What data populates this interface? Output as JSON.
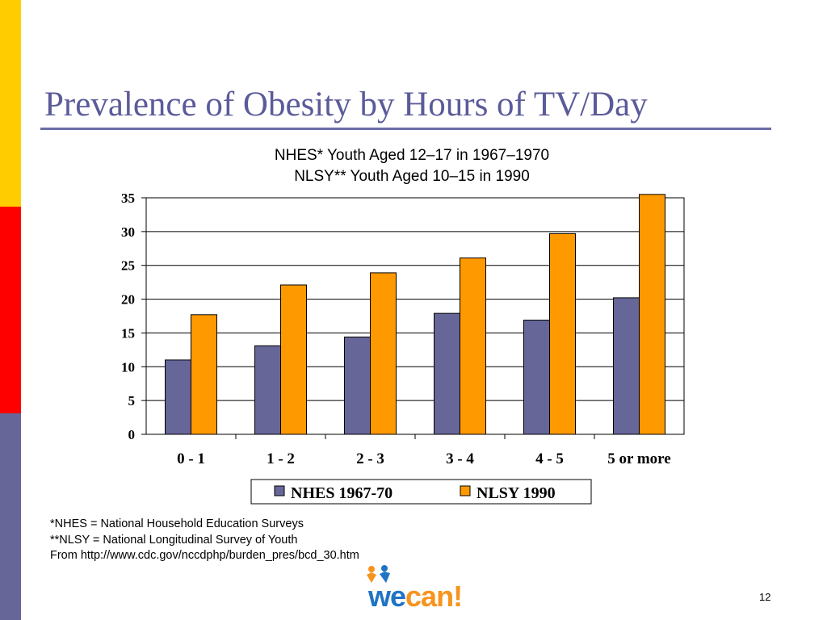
{
  "slide": {
    "title": "Prevalence of Obesity by Hours of TV/Day",
    "page_number": "12",
    "footnotes": [
      "*NHES = National Household Education Surveys",
      "**NLSY = National Longitudinal Survey of Youth",
      "From http://www.cdc.gov/nccdphp/burden_pres/bcd_30.htm"
    ],
    "logo": {
      "part1": "we",
      "part2": "can!"
    }
  },
  "colors": {
    "side_yellow": "#ffcc00",
    "side_red": "#ff0000",
    "side_purple": "#666699",
    "nhes": "#666699",
    "nlsy": "#ff9900",
    "logo_blue": "#1f74c4",
    "logo_orange": "#f7941d"
  },
  "chart_data": {
    "type": "bar",
    "title_lines": [
      "NHES* Youth Aged 12–17 in 1967–1970",
      "NLSY** Youth Aged 10–15 in 1990"
    ],
    "categories": [
      "0 - 1",
      "1 - 2",
      "2 - 3",
      "3 - 4",
      "4 - 5",
      "5 or more"
    ],
    "series": [
      {
        "name": "NHES 1967-70",
        "values": [
          11,
          13.1,
          14.4,
          17.9,
          16.9,
          20.2
        ]
      },
      {
        "name": "NLSY 1990",
        "values": [
          17.7,
          22.1,
          23.9,
          26.1,
          29.7,
          35.5
        ]
      }
    ],
    "ylim": [
      0,
      35
    ],
    "yticks": [
      0,
      5,
      10,
      15,
      20,
      25,
      30,
      35
    ],
    "grid": true,
    "legend_position": "bottom"
  }
}
